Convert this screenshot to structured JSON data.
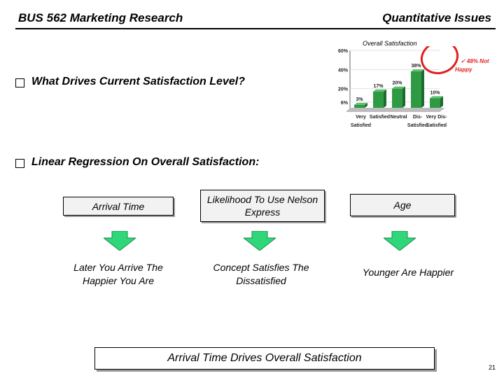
{
  "header": {
    "left_title": "BUS 562 Marketing Research",
    "right_title": "Quantitative Issues"
  },
  "questions": [
    "What Drives Current Satisfaction Level?",
    "Linear Regression On Overall Satisfaction:"
  ],
  "factors": [
    {
      "label": "Arrival Time",
      "result": "Later You Arrive The Happier You Are"
    },
    {
      "label": "Likelihood To Use Nelson Express",
      "result": "Concept Satisfies The Dissatisfied"
    },
    {
      "label": "Age",
      "result": "Younger Are Happier"
    }
  ],
  "conclusion": "Arrival Time Drives Overall Satisfaction",
  "page_number": "21",
  "colors": {
    "bar": "#2e9a44",
    "arrow": "#2fd67a",
    "highlight": "#e02020"
  },
  "chart_data": {
    "type": "bar",
    "title": "Overall Satisfaction",
    "categories": [
      "Very Satisfied",
      "Satisfied",
      "Neutral",
      "Dis-Satisfied",
      "Very Dis-Satisfied"
    ],
    "values": [
      3,
      17,
      20,
      38,
      10
    ],
    "value_labels": [
      "3%",
      "17%",
      "20%",
      "38%",
      "10%"
    ],
    "yticks": [
      "6%",
      "20%",
      "40%",
      "60%"
    ],
    "ylim": [
      0,
      60
    ],
    "annotation": "✓ 48% Not Happy"
  }
}
